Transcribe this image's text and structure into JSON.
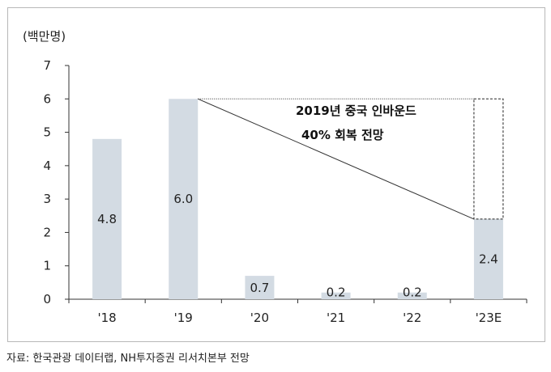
{
  "chart_data": {
    "type": "bar",
    "unit_label": "(백만명)",
    "categories": [
      "'18",
      "'19",
      "'20",
      "'21",
      "'22",
      "'23E"
    ],
    "values": [
      4.8,
      6.0,
      0.7,
      0.2,
      0.2,
      2.4
    ],
    "data_labels": [
      "4.8",
      "6.0",
      "0.7",
      "0.2",
      "0.2",
      "2.4"
    ],
    "projection": {
      "category": "'23E",
      "target_value": 6.0
    },
    "ylim": [
      0,
      7
    ],
    "yticks": [
      "0",
      "1",
      "2",
      "3",
      "4",
      "5",
      "6",
      "7"
    ],
    "annotation_lines": [
      "2019년 중국 인바운드",
      "40% 회복 전망"
    ],
    "grid": false,
    "bar_color": "#d3dbe3"
  },
  "source": "자료: 한국관광 데이터랩, NH투자증권 리서치본부 전망"
}
